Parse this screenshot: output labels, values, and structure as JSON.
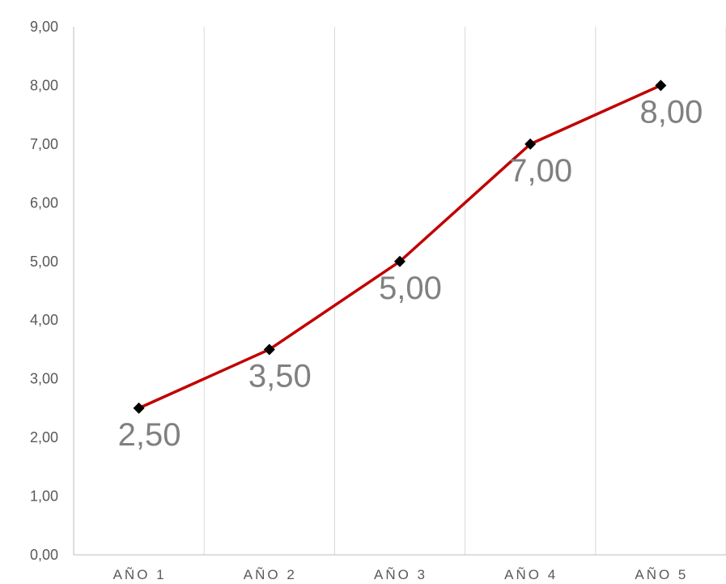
{
  "chart_data": {
    "type": "line",
    "categories": [
      "AÑO 1",
      "AÑO 2",
      "AÑO 3",
      "AÑO 4",
      "AÑO 5"
    ],
    "values": [
      2.5,
      3.5,
      5.0,
      7.0,
      8.0
    ],
    "data_labels": [
      "2,50",
      "3,50",
      "5,00",
      "7,00",
      "8,00"
    ],
    "y_tick_labels": [
      "0,00",
      "1,00",
      "2,00",
      "3,00",
      "4,00",
      "5,00",
      "6,00",
      "7,00",
      "8,00",
      "9,00"
    ],
    "ylim": [
      0,
      9
    ],
    "y_step": 1,
    "title": "",
    "xlabel": "",
    "ylabel": "",
    "grid": "vertical",
    "legend": "none",
    "marker": "diamond",
    "colors": {
      "line": "#C00000",
      "marker": "#000000",
      "grid": "#D9D9D9",
      "axis": "#BFBFBF",
      "tick_text": "#595959",
      "data_label_text": "#808080"
    }
  }
}
